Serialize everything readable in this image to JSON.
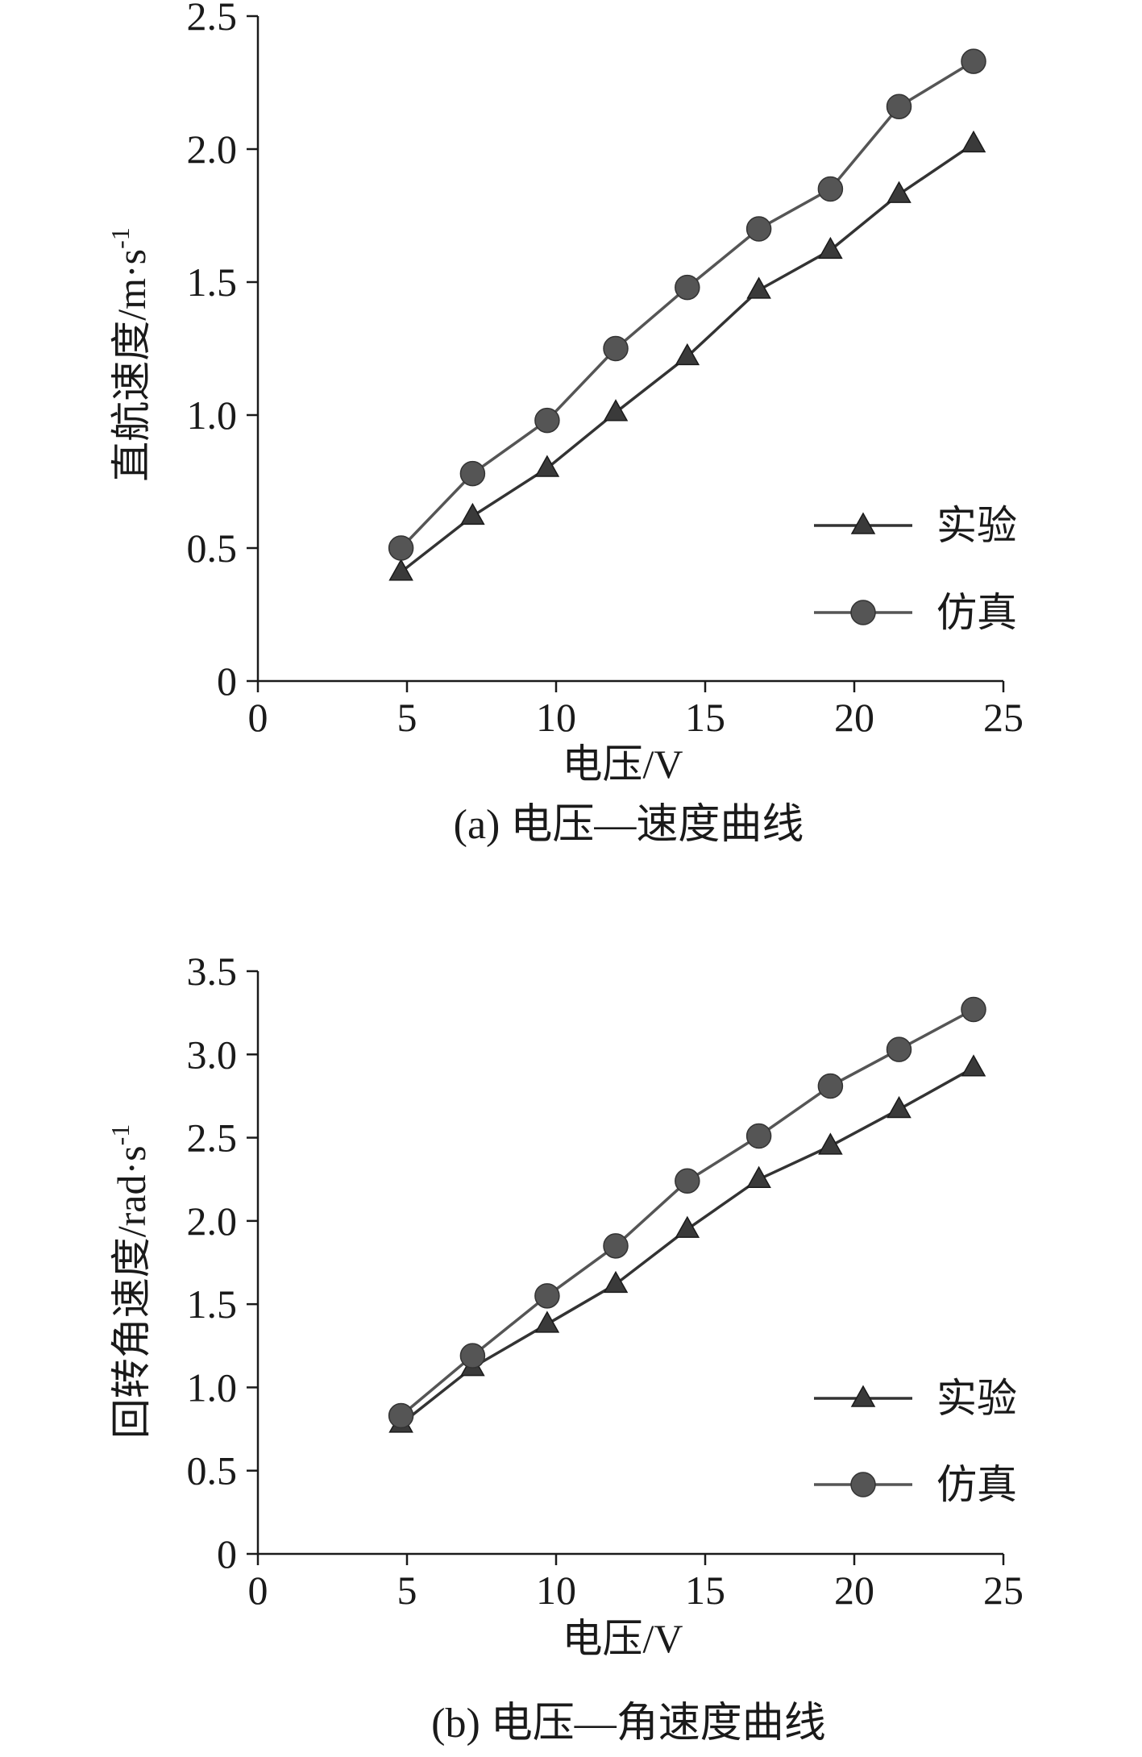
{
  "chart_data": [
    {
      "type": "line",
      "caption": "(a) 电压—速度曲线",
      "xlabel": "电压/V",
      "ylabel": "直航速度/m·s",
      "ylabel_sup": "-1",
      "xlim": [
        0,
        25
      ],
      "ylim": [
        0,
        2.5
      ],
      "xticks": [
        "0",
        "5",
        "10",
        "15",
        "20",
        "25"
      ],
      "yticks": [
        "0",
        "0.5",
        "1.0",
        "1.5",
        "2.0",
        "2.5"
      ],
      "grid": false,
      "legend_position": "lower-right",
      "x": [
        4.8,
        7.2,
        9.7,
        12.0,
        14.4,
        16.8,
        19.2,
        21.5,
        24.0
      ],
      "series": [
        {
          "name": "实验",
          "marker": "triangle",
          "color": "#333333",
          "values": [
            0.41,
            0.62,
            0.8,
            1.01,
            1.22,
            1.47,
            1.62,
            1.83,
            2.02
          ]
        },
        {
          "name": "仿真",
          "marker": "circle",
          "color": "#555555",
          "values": [
            0.5,
            0.78,
            0.98,
            1.25,
            1.48,
            1.7,
            1.85,
            2.16,
            2.33
          ]
        }
      ]
    },
    {
      "type": "line",
      "caption": "(b) 电压—角速度曲线",
      "xlabel": "电压/V",
      "ylabel": "回转角速度/rad·s",
      "ylabel_sup": "-1",
      "xlim": [
        0,
        25
      ],
      "ylim": [
        0,
        3.5
      ],
      "xticks": [
        "0",
        "5",
        "10",
        "15",
        "20",
        "25"
      ],
      "yticks": [
        "0",
        "0.5",
        "1.0",
        "1.5",
        "2.0",
        "2.5",
        "3.0",
        "3.5"
      ],
      "grid": false,
      "legend_position": "lower-right",
      "x": [
        4.8,
        7.2,
        9.7,
        12.0,
        14.4,
        16.8,
        19.2,
        21.5,
        24.0
      ],
      "series": [
        {
          "name": "实验",
          "marker": "triangle",
          "color": "#333333",
          "values": [
            0.78,
            1.12,
            1.38,
            1.62,
            1.95,
            2.25,
            2.45,
            2.67,
            2.92
          ]
        },
        {
          "name": "仿真",
          "marker": "circle",
          "color": "#555555",
          "values": [
            0.83,
            1.19,
            1.55,
            1.85,
            2.24,
            2.51,
            2.81,
            3.03,
            3.27
          ]
        }
      ]
    }
  ]
}
